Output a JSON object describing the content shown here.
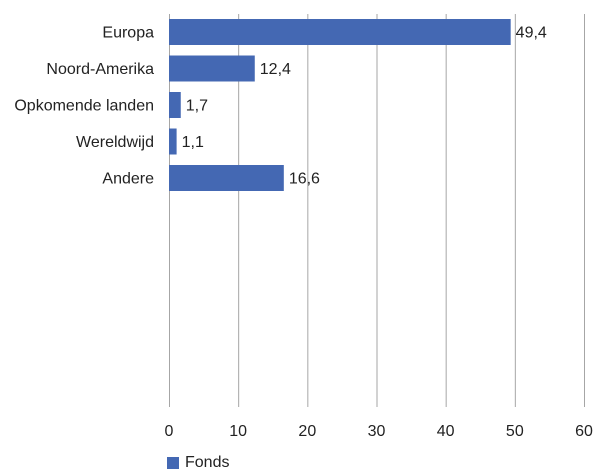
{
  "chart_data": {
    "type": "bar",
    "orientation": "horizontal",
    "categories": [
      "Europa",
      "Noord-Amerika",
      "Opkomende landen",
      "Wereldwijd",
      "Andere"
    ],
    "series": [
      {
        "name": "Fonds",
        "values": [
          49.4,
          12.4,
          1.7,
          1.1,
          16.6
        ]
      }
    ],
    "data_labels": [
      "49,4",
      "12,4",
      "1,7",
      "1,1",
      "16,6"
    ],
    "x_ticks": [
      "0",
      "10",
      "20",
      "30",
      "40",
      "50",
      "60"
    ],
    "xlim": [
      0,
      60
    ],
    "grid": "vertical",
    "legend_position": "bottom-left",
    "bar_color": "#4468b3",
    "grid_color": "#a6a6a6"
  }
}
